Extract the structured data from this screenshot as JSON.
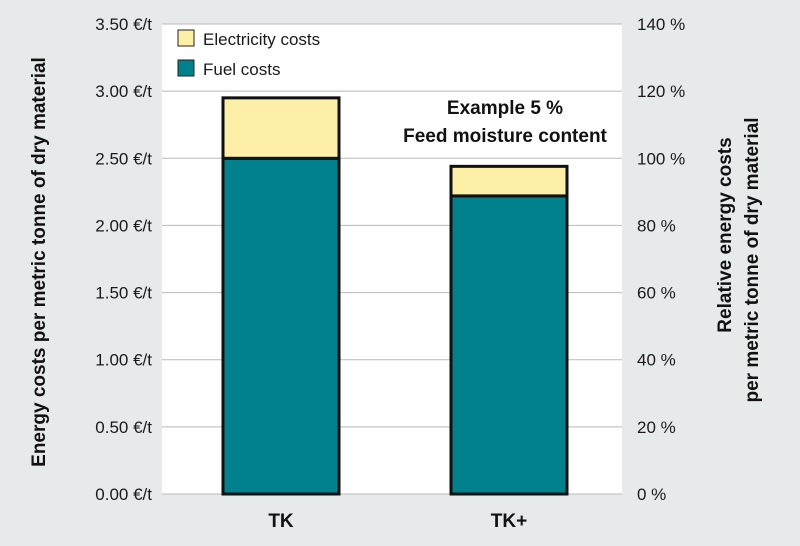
{
  "chart_data": {
    "type": "bar",
    "stacked": true,
    "categories": [
      "TK",
      "TK+"
    ],
    "series": [
      {
        "name": "Fuel costs",
        "values": [
          2.5,
          2.22
        ],
        "color": "#00818c"
      },
      {
        "name": "Electricity costs",
        "values": [
          0.45,
          0.22
        ],
        "color": "#fdefa6"
      }
    ],
    "ylabel": "Energy costs per metric tonne of dry material",
    "ylabel_right": [
      "Relative energy costs",
      "per metric tonne of dry material"
    ],
    "ylim": [
      0,
      3.5
    ],
    "y_ticks": [
      "0.00 €/t",
      "0.50 €/t",
      "1.00 €/t",
      "1.50 €/t",
      "2.00 €/t",
      "2.50 €/t",
      "3.00 €/t",
      "3.50 €/t"
    ],
    "ylim_right": [
      0,
      140
    ],
    "y_ticks_right": [
      "0 %",
      "20 %",
      "40 %",
      "60 %",
      "80 %",
      "100 %",
      "120 %",
      "140 %"
    ],
    "annotation": [
      "Example 5 %",
      "Feed moisture content"
    ],
    "legend": [
      "Electricity costs",
      "Fuel costs"
    ],
    "legend_position": "top-left",
    "grid": true,
    "background": "#e6eaeb",
    "plot_background": "#ffffff"
  }
}
